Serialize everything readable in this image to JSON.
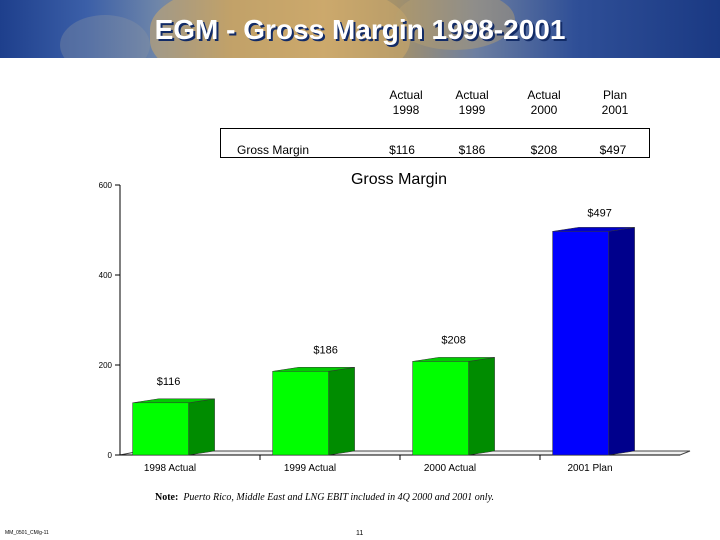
{
  "slide": {
    "title": "EGM - Gross Margin 1998-2001",
    "table": {
      "row_label": "Gross Margin",
      "columns": [
        {
          "header_line1": "Actual",
          "header_line2": "1998",
          "value": "$116"
        },
        {
          "header_line1": "Actual",
          "header_line2": "1999",
          "value": "$186"
        },
        {
          "header_line1": "Actual",
          "header_line2": "2000",
          "value": "$208"
        },
        {
          "header_line1": "Plan",
          "header_line2": "2001",
          "value": "$497"
        }
      ]
    },
    "note_label": "Note:",
    "note_text": "Puerto Rico, Middle East and LNG EBIT included in 4Q 2000 and 2001 only.",
    "footer_id": "MM_0501_CM/g-11",
    "page_number": "11"
  },
  "chart_data": {
    "type": "bar",
    "title": "Gross Margin",
    "categories": [
      "1998 Actual",
      "1999 Actual",
      "2000 Actual",
      "2001 Plan"
    ],
    "values": [
      116,
      186,
      208,
      497
    ],
    "data_labels": [
      "$116",
      "$186",
      "$208",
      "$497"
    ],
    "bar_colors": [
      "#00ff00",
      "#00ff00",
      "#00ff00",
      "#0000ff"
    ],
    "yticks": [
      0,
      200,
      400,
      600
    ],
    "ylim": [
      0,
      600
    ],
    "xlabel": "",
    "ylabel": "",
    "grid": false,
    "style": "3d"
  }
}
